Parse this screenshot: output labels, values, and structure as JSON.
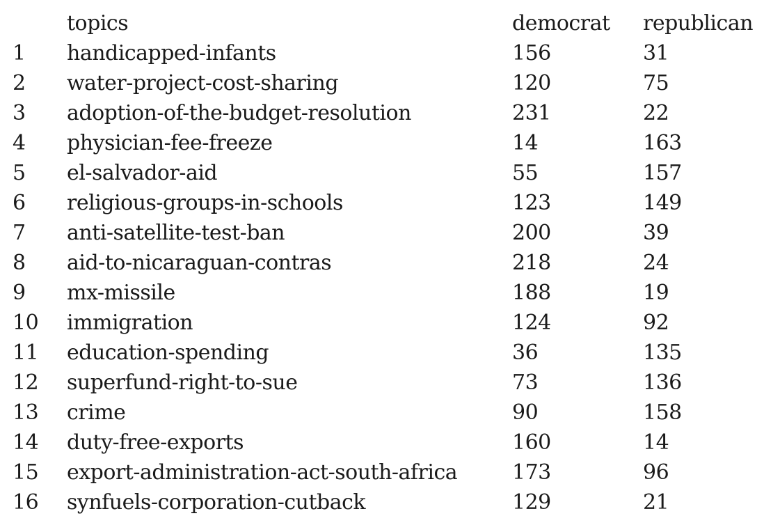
{
  "table": {
    "columns": [
      "",
      "topics",
      "democrat",
      "republican"
    ],
    "rows": [
      [
        "1",
        "handicapped-infants",
        "156",
        "31"
      ],
      [
        "2",
        "water-project-cost-sharing",
        "120",
        "75"
      ],
      [
        "3",
        "adoption-of-the-budget-resolution",
        "231",
        "22"
      ],
      [
        "4",
        "physician-fee-freeze",
        "14",
        "163"
      ],
      [
        "5",
        "el-salvador-aid",
        "55",
        "157"
      ],
      [
        "6",
        "religious-groups-in-schools",
        "123",
        "149"
      ],
      [
        "7",
        "anti-satellite-test-ban",
        "200",
        "39"
      ],
      [
        "8",
        "aid-to-nicaraguan-contras",
        "218",
        "24"
      ],
      [
        "9",
        "mx-missile",
        "188",
        "19"
      ],
      [
        "10",
        "immigration",
        "124",
        "92"
      ],
      [
        "11",
        "education-spending",
        "36",
        "135"
      ],
      [
        "12",
        "superfund-right-to-sue",
        "73",
        "136"
      ],
      [
        "13",
        "crime",
        "90",
        "158"
      ],
      [
        "14",
        "duty-free-exports",
        "160",
        "14"
      ],
      [
        "15",
        "export-administration-act-south-africa",
        "173",
        "96"
      ],
      [
        "16",
        "synfuels-corporation-cutback",
        "129",
        "21"
      ]
    ]
  }
}
